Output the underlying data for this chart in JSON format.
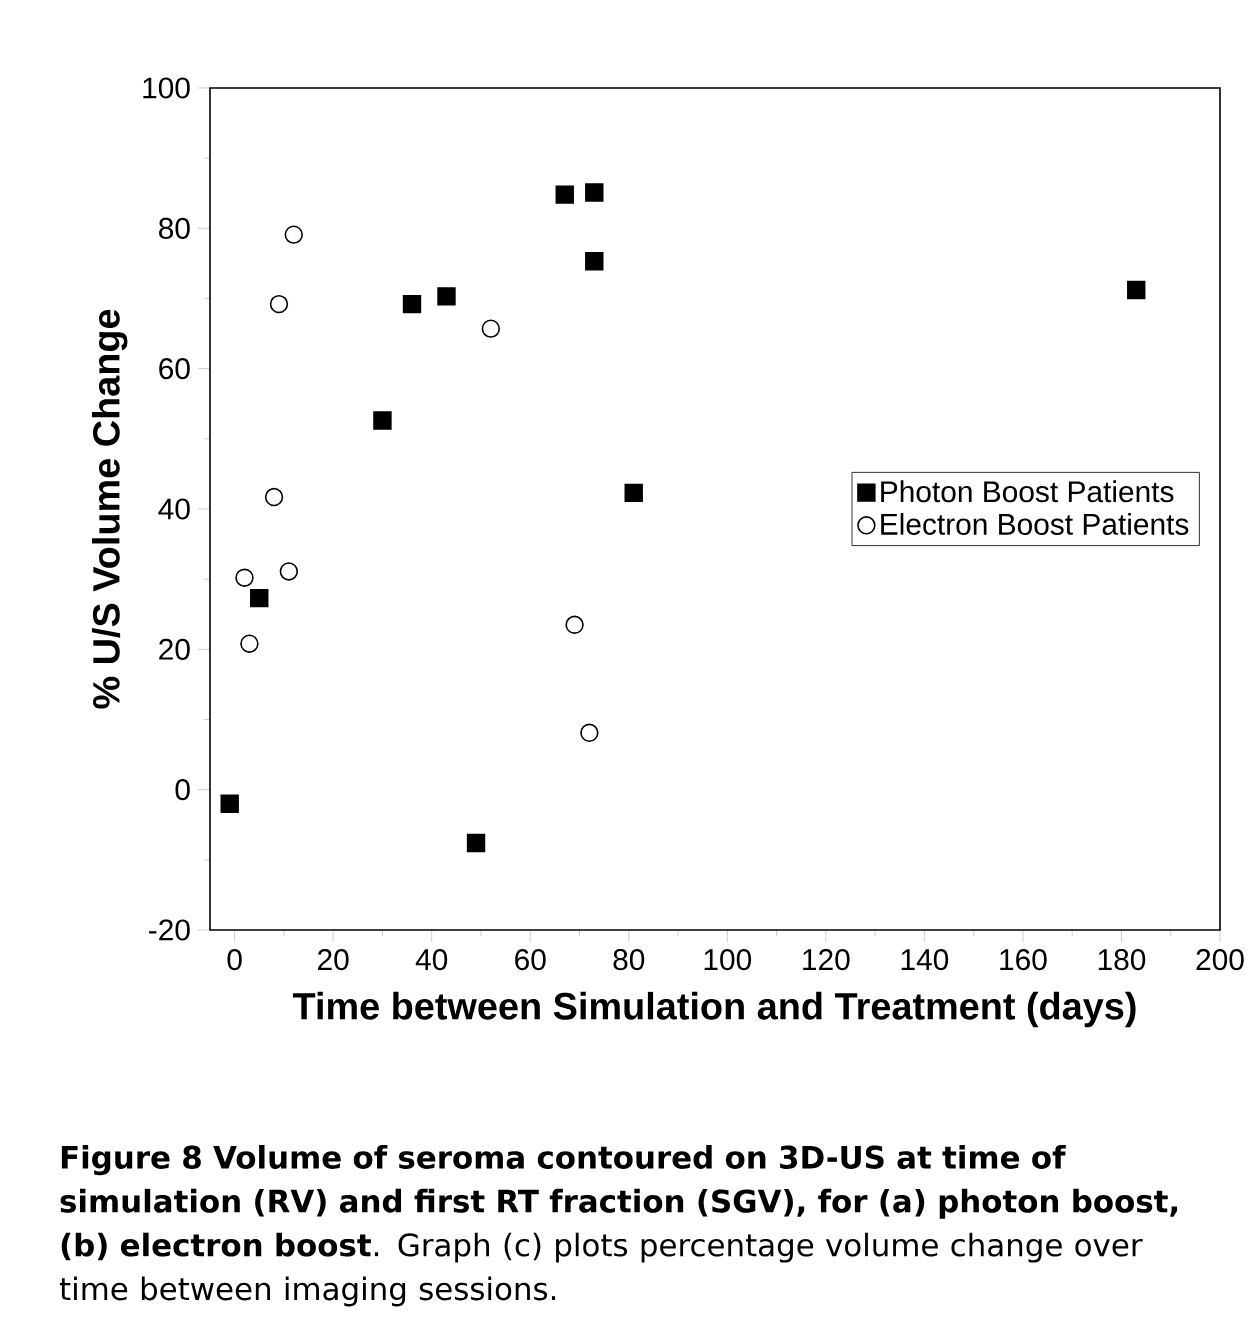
{
  "chart_data": {
    "type": "scatter",
    "xlabel": "Time between Simulation and Treatment (days)",
    "ylabel": "% U/S Volume Change",
    "xlim": [
      -5,
      200
    ],
    "xticks": [
      0,
      20,
      40,
      60,
      80,
      100,
      120,
      140,
      160,
      180,
      200
    ],
    "ylim": [
      -20,
      100
    ],
    "yticks": [
      -20,
      0,
      20,
      40,
      60,
      80,
      100
    ],
    "grid": false,
    "legend": "right",
    "series": [
      {
        "name": "Photon Boost Patients",
        "color": "#000000",
        "marker": "square",
        "x": [
          -1,
          5,
          30,
          36,
          43,
          49,
          67,
          73,
          73,
          81,
          183
        ],
        "values": [
          -2,
          27.3,
          52.6,
          69.2,
          70.3,
          -7.6,
          84.8,
          85.1,
          75.3,
          42.3,
          71.2
        ]
      },
      {
        "name": "Electron Boost Patients",
        "color": "#000000",
        "marker": "circle",
        "x": [
          2,
          3,
          8,
          9,
          11,
          12,
          52,
          69,
          72
        ],
        "values": [
          30.2,
          20.8,
          41.7,
          69.2,
          31.1,
          79.1,
          65.7,
          23.5,
          8.1
        ]
      }
    ],
    "annotations": [
      "**Figure 8 Volume of seroma contoured on 3D-US at time of simulation (RV) and first RT fraction (SGV), for (a) photon boost, (b) electron boost**. Graph (c) plots percentage volume change over time between imaging sessions."
    ]
  }
}
